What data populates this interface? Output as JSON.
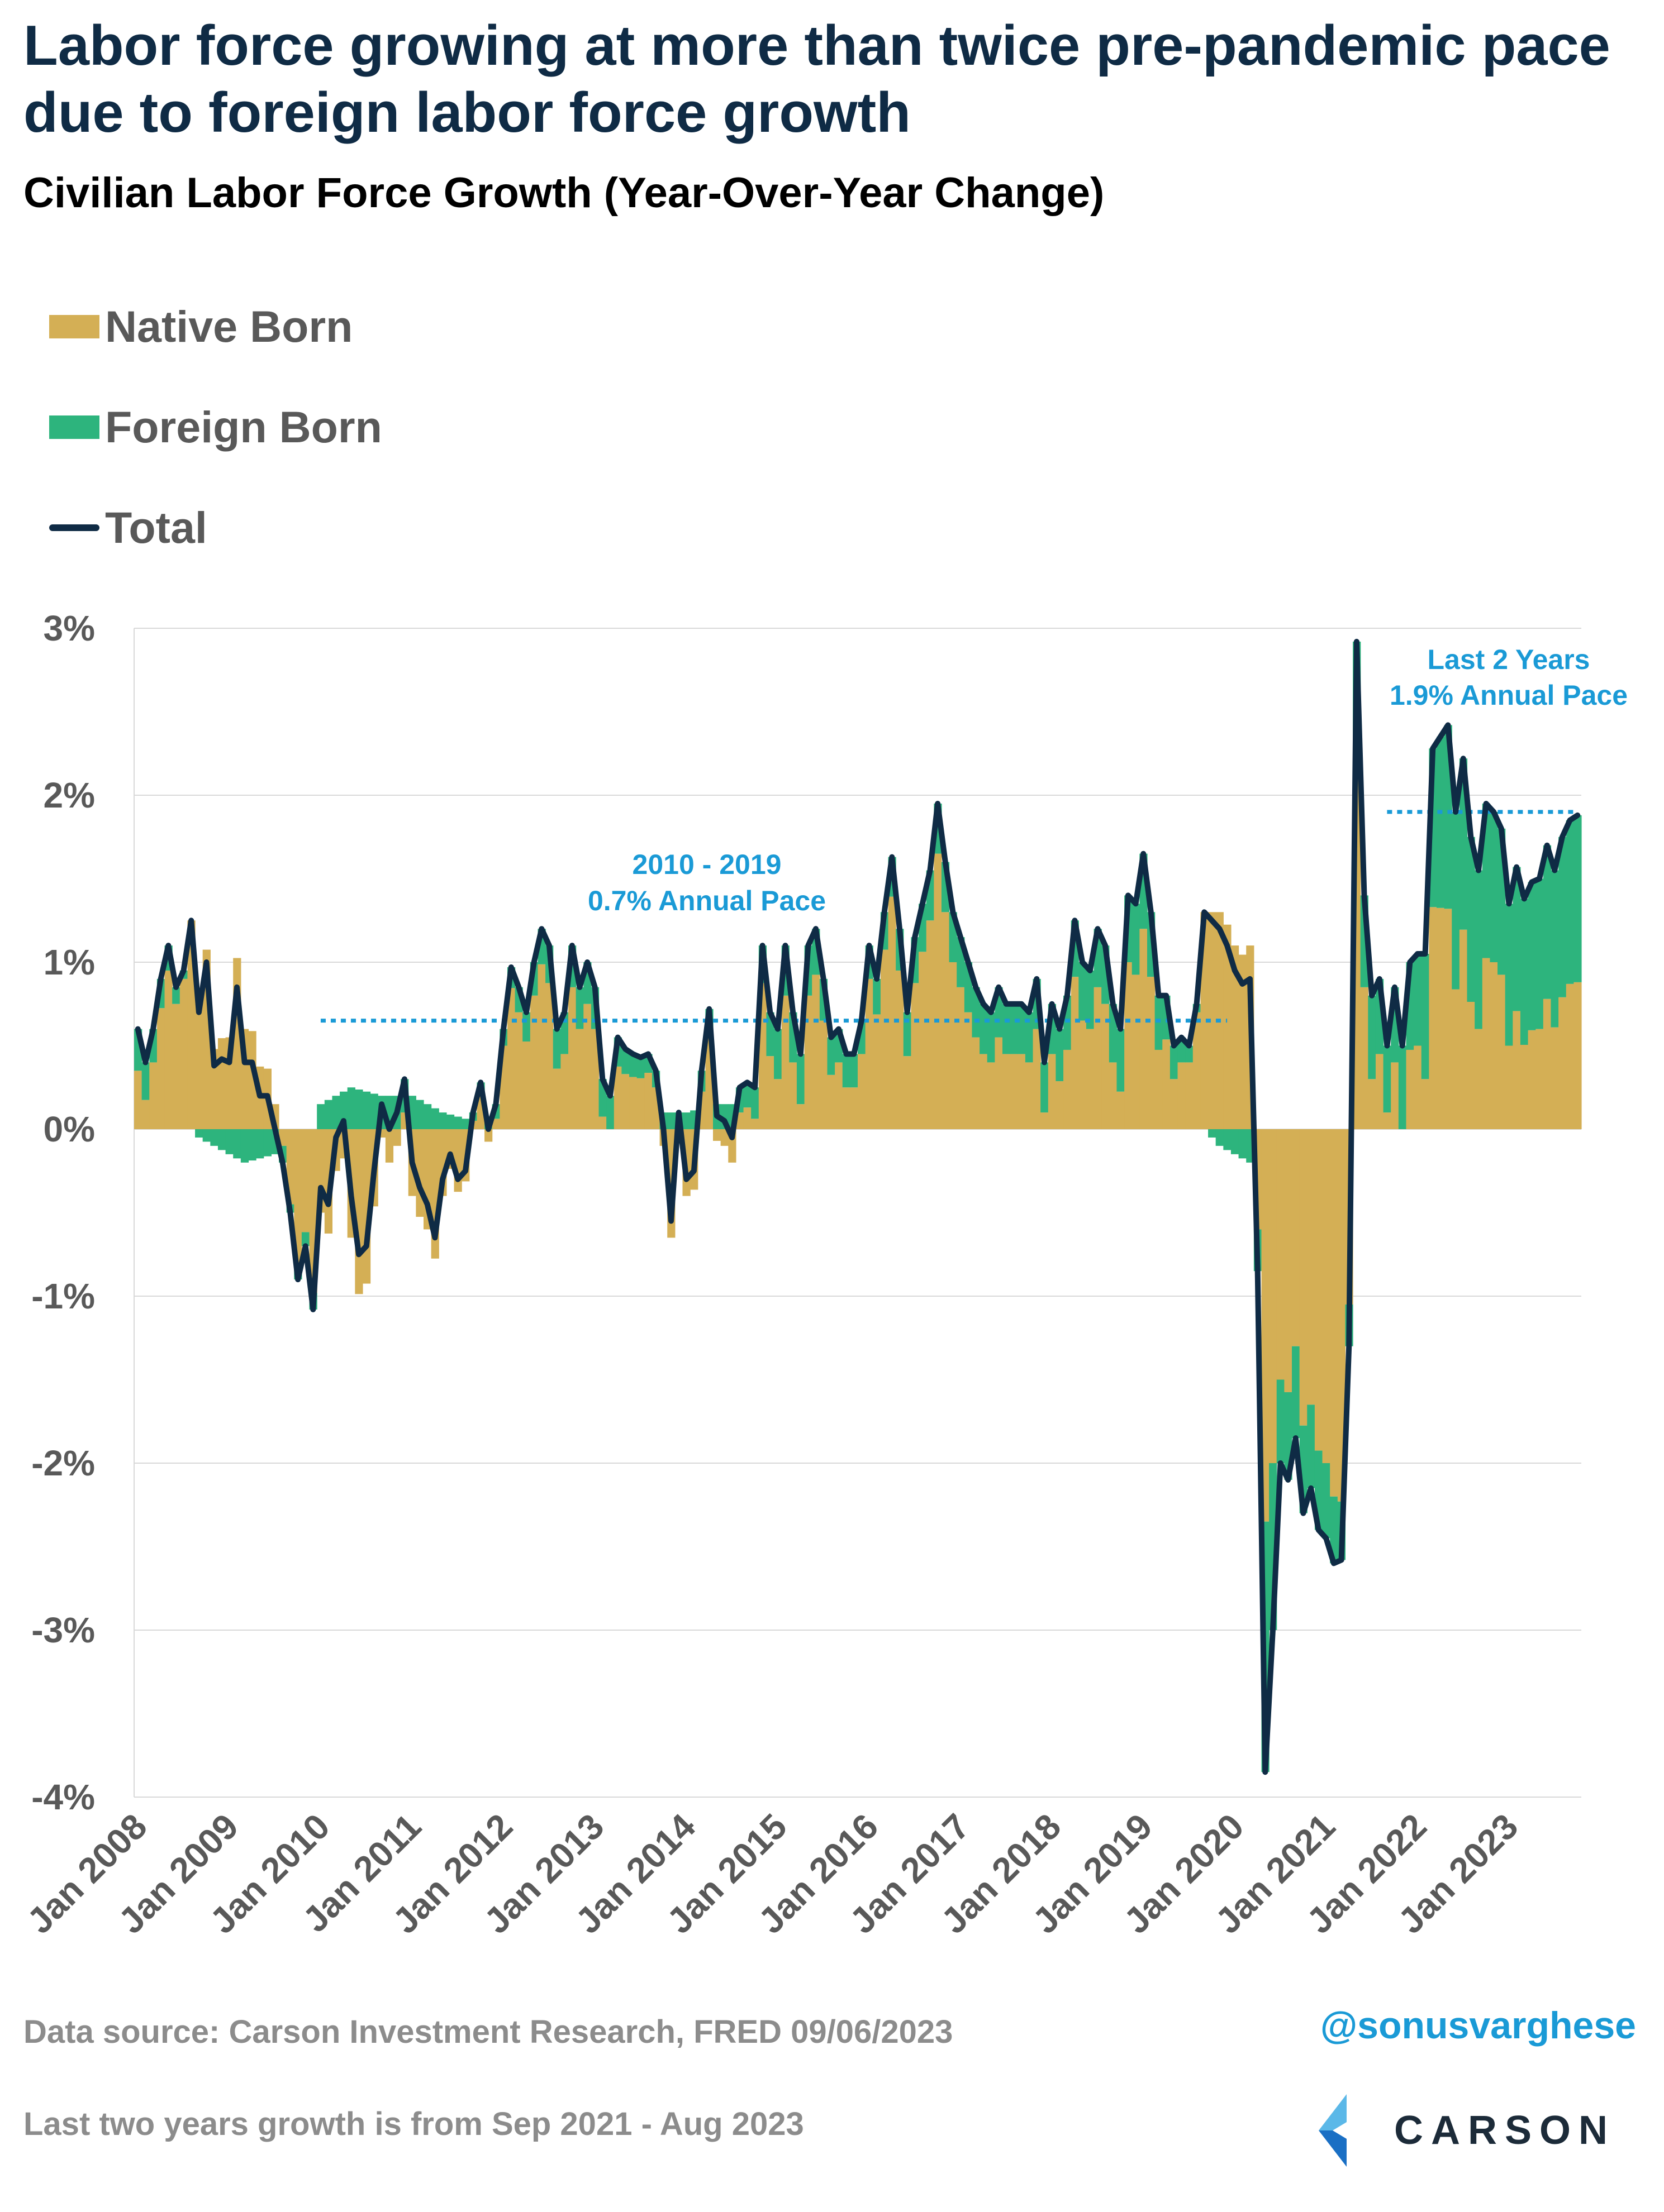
{
  "title": "Labor force growing at more than twice pre-pandemic pace due to foreign labor force growth",
  "subtitle": "Civilian Labor Force Growth (Year-Over-Year Change)",
  "legend": [
    {
      "label": "Native Born",
      "color": "#d4af55",
      "kind": "bar"
    },
    {
      "label": "Foreign Born",
      "color": "#2db47d",
      "kind": "bar"
    },
    {
      "label": "Total",
      "color": "#0f2b45",
      "kind": "line"
    }
  ],
  "annotations": {
    "pre_pandemic": {
      "line1": "2010 - 2019",
      "line2": "0.7% Annual Pace",
      "value": 0.65,
      "start": "Jan 2010",
      "end": "Dec 2019"
    },
    "recent": {
      "line1": "Last 2 Years",
      "line2": "1.9% Annual Pace",
      "value": 1.9,
      "start": "Sep 2021",
      "end": "Aug 2023"
    }
  },
  "footer": {
    "source": "Data source: Carson Investment Research, FRED   09/06/2023",
    "note": "Last two years growth is from Sep 2021 - Aug 2023",
    "handle": "@sonusvarghese",
    "logo_text": "CARSON"
  },
  "chart_data": {
    "type": "bar",
    "stacked": true,
    "title": "Civilian Labor Force Growth (Year-Over-Year Change)",
    "ylim": [
      -4,
      3
    ],
    "yticks": [
      "3%",
      "2%",
      "1%",
      "0%",
      "-1%",
      "-2%",
      "-3%",
      "-4%"
    ],
    "xticks": [
      "Jan 2008",
      "Jan 2009",
      "Jan 2010",
      "Jan 2011",
      "Jan 2012",
      "Jan 2013",
      "Jan 2014",
      "Jan 2015",
      "Jan 2016",
      "Jan 2017",
      "Jan 2018",
      "Jan 2019",
      "Jan 2020",
      "Jan 2021",
      "Jan 2022",
      "Jan 2023"
    ],
    "x_start": "Jan 2008",
    "x_end": "Aug 2023",
    "grid": true,
    "legend_position": "top-left",
    "total_anchors": [
      [
        0,
        0.6
      ],
      [
        1,
        0.4
      ],
      [
        2,
        0.6
      ],
      [
        3,
        0.9
      ],
      [
        4,
        1.1
      ],
      [
        5,
        0.85
      ],
      [
        6,
        0.95
      ],
      [
        7,
        1.25
      ],
      [
        8,
        0.7
      ],
      [
        9,
        1.0
      ],
      [
        10,
        0.38
      ],
      [
        11,
        0.42
      ],
      [
        12,
        0.4
      ],
      [
        13,
        0.85
      ],
      [
        14,
        0.4
      ],
      [
        15,
        0.4
      ],
      [
        16,
        0.2
      ],
      [
        17,
        0.2
      ],
      [
        18,
        0.0
      ],
      [
        19,
        -0.2
      ],
      [
        20,
        -0.5
      ],
      [
        21,
        -0.9
      ],
      [
        22,
        -0.7
      ],
      [
        23,
        -1.08
      ],
      [
        24,
        -0.35
      ],
      [
        25,
        -0.45
      ],
      [
        26,
        -0.05
      ],
      [
        27,
        0.05
      ],
      [
        28,
        -0.4
      ],
      [
        29,
        -0.75
      ],
      [
        30,
        -0.7
      ],
      [
        31,
        -0.25
      ],
      [
        32,
        0.15
      ],
      [
        33,
        0.0
      ],
      [
        34,
        0.1
      ],
      [
        35,
        0.3
      ],
      [
        36,
        -0.2
      ],
      [
        37,
        -0.35
      ],
      [
        38,
        -0.45
      ],
      [
        39,
        -0.65
      ],
      [
        40,
        -0.3
      ],
      [
        41,
        -0.15
      ],
      [
        42,
        -0.3
      ],
      [
        43,
        -0.25
      ],
      [
        44,
        0.1
      ],
      [
        45,
        0.28
      ],
      [
        46,
        0.0
      ],
      [
        47,
        0.15
      ],
      [
        48,
        0.6
      ],
      [
        49,
        0.97
      ],
      [
        50,
        0.85
      ],
      [
        51,
        0.7
      ],
      [
        52,
        1.0
      ],
      [
        53,
        1.2
      ],
      [
        54,
        1.1
      ],
      [
        55,
        0.6
      ],
      [
        56,
        0.7
      ],
      [
        57,
        1.1
      ],
      [
        58,
        0.85
      ],
      [
        59,
        1.0
      ],
      [
        60,
        0.85
      ],
      [
        61,
        0.3
      ],
      [
        62,
        0.2
      ],
      [
        63,
        0.55
      ],
      [
        64,
        0.48
      ],
      [
        65,
        0.45
      ],
      [
        66,
        0.43
      ],
      [
        67,
        0.45
      ],
      [
        68,
        0.35
      ],
      [
        69,
        0.0
      ],
      [
        70,
        -0.55
      ],
      [
        71,
        0.1
      ],
      [
        72,
        -0.3
      ],
      [
        73,
        -0.25
      ],
      [
        74,
        0.35
      ],
      [
        75,
        0.72
      ],
      [
        76,
        0.08
      ],
      [
        77,
        0.05
      ],
      [
        78,
        -0.05
      ],
      [
        79,
        0.25
      ],
      [
        80,
        0.28
      ],
      [
        81,
        0.25
      ],
      [
        82,
        1.1
      ],
      [
        83,
        0.7
      ],
      [
        84,
        0.6
      ],
      [
        85,
        1.1
      ],
      [
        86,
        0.7
      ],
      [
        87,
        0.45
      ],
      [
        88,
        1.1
      ],
      [
        89,
        1.2
      ],
      [
        90,
        0.9
      ],
      [
        91,
        0.55
      ],
      [
        92,
        0.6
      ],
      [
        93,
        0.45
      ],
      [
        94,
        0.45
      ],
      [
        95,
        0.65
      ],
      [
        96,
        1.1
      ],
      [
        97,
        0.9
      ],
      [
        98,
        1.3
      ],
      [
        99,
        1.63
      ],
      [
        100,
        1.2
      ],
      [
        101,
        0.7
      ],
      [
        102,
        1.15
      ],
      [
        103,
        1.35
      ],
      [
        104,
        1.55
      ],
      [
        105,
        1.95
      ],
      [
        106,
        1.6
      ],
      [
        107,
        1.3
      ],
      [
        108,
        1.15
      ],
      [
        109,
        1.0
      ],
      [
        110,
        0.85
      ],
      [
        111,
        0.75
      ],
      [
        112,
        0.7
      ],
      [
        113,
        0.85
      ],
      [
        114,
        0.75
      ],
      [
        115,
        0.75
      ],
      [
        116,
        0.75
      ],
      [
        117,
        0.7
      ],
      [
        118,
        0.9
      ],
      [
        119,
        0.4
      ],
      [
        120,
        0.75
      ],
      [
        121,
        0.6
      ],
      [
        122,
        0.8
      ],
      [
        123,
        1.25
      ],
      [
        124,
        1.0
      ],
      [
        125,
        0.95
      ],
      [
        126,
        1.2
      ],
      [
        127,
        1.1
      ],
      [
        128,
        0.75
      ],
      [
        129,
        0.6
      ],
      [
        130,
        1.4
      ],
      [
        131,
        1.35
      ],
      [
        132,
        1.65
      ],
      [
        133,
        1.3
      ],
      [
        134,
        0.8
      ],
      [
        135,
        0.8
      ],
      [
        136,
        0.5
      ],
      [
        137,
        0.55
      ],
      [
        138,
        0.5
      ],
      [
        139,
        0.75
      ],
      [
        140,
        1.3
      ],
      [
        141,
        1.25
      ],
      [
        142,
        1.2
      ],
      [
        143,
        1.1
      ],
      [
        144,
        0.95
      ],
      [
        145,
        0.87
      ],
      [
        146,
        0.9
      ],
      [
        147,
        -0.85
      ],
      [
        148,
        -3.85
      ],
      [
        149,
        -3.0
      ],
      [
        150,
        -2.0
      ],
      [
        151,
        -2.1
      ],
      [
        152,
        -1.85
      ],
      [
        153,
        -2.3
      ],
      [
        154,
        -2.15
      ],
      [
        155,
        -2.4
      ],
      [
        156,
        -2.45
      ],
      [
        157,
        -2.6
      ],
      [
        158,
        -2.58
      ],
      [
        159,
        -1.3
      ],
      [
        160,
        2.92
      ],
      [
        161,
        1.4
      ],
      [
        162,
        0.8
      ],
      [
        163,
        0.9
      ],
      [
        164,
        0.5
      ],
      [
        165,
        0.85
      ],
      [
        166,
        0.5
      ],
      [
        167,
        1.0
      ],
      [
        168,
        1.05
      ],
      [
        169,
        1.05
      ],
      [
        170,
        2.28
      ],
      [
        171,
        2.35
      ],
      [
        172,
        2.42
      ],
      [
        173,
        1.9
      ],
      [
        174,
        2.22
      ],
      [
        175,
        1.75
      ],
      [
        176,
        1.55
      ],
      [
        177,
        1.95
      ],
      [
        178,
        1.9
      ],
      [
        179,
        1.8
      ],
      [
        180,
        1.35
      ],
      [
        181,
        1.57
      ],
      [
        182,
        1.38
      ],
      [
        183,
        1.48
      ],
      [
        184,
        1.5
      ],
      [
        185,
        1.7
      ],
      [
        186,
        1.55
      ],
      [
        187,
        1.75
      ],
      [
        188,
        1.85
      ],
      [
        189,
        1.88
      ]
    ],
    "foreign_anchors": [
      [
        0,
        0.25
      ],
      [
        4,
        0.15
      ],
      [
        8,
        -0.05
      ],
      [
        10,
        -0.1
      ],
      [
        14,
        -0.2
      ],
      [
        18,
        -0.15
      ],
      [
        20,
        -0.05
      ],
      [
        23,
        -0.1
      ],
      [
        24,
        0.15
      ],
      [
        28,
        0.25
      ],
      [
        32,
        0.2
      ],
      [
        36,
        0.2
      ],
      [
        40,
        0.1
      ],
      [
        44,
        0.05
      ],
      [
        48,
        0.1
      ],
      [
        52,
        0.2
      ],
      [
        56,
        0.25
      ],
      [
        60,
        0.25
      ],
      [
        64,
        0.15
      ],
      [
        68,
        0.1
      ],
      [
        72,
        0.1
      ],
      [
        76,
        0.15
      ],
      [
        80,
        0.15
      ],
      [
        84,
        0.3
      ],
      [
        88,
        0.3
      ],
      [
        92,
        0.2
      ],
      [
        96,
        0.2
      ],
      [
        100,
        0.25
      ],
      [
        104,
        0.3
      ],
      [
        108,
        0.3
      ],
      [
        112,
        0.3
      ],
      [
        116,
        0.3
      ],
      [
        120,
        0.3
      ],
      [
        124,
        0.35
      ],
      [
        128,
        0.35
      ],
      [
        132,
        0.45
      ],
      [
        136,
        0.2
      ],
      [
        140,
        0.0
      ],
      [
        142,
        -0.1
      ],
      [
        146,
        -0.2
      ],
      [
        147,
        -0.25
      ],
      [
        148,
        -1.5
      ],
      [
        150,
        -0.5
      ],
      [
        152,
        -0.55
      ],
      [
        154,
        -0.5
      ],
      [
        156,
        -0.45
      ],
      [
        158,
        -0.35
      ],
      [
        159,
        -0.25
      ],
      [
        160,
        0.6
      ],
      [
        162,
        0.5
      ],
      [
        164,
        0.4
      ],
      [
        166,
        0.5
      ],
      [
        168,
        0.55
      ],
      [
        170,
        0.95
      ],
      [
        172,
        1.1
      ],
      [
        176,
        0.95
      ],
      [
        180,
        0.85
      ],
      [
        184,
        0.9
      ],
      [
        189,
        1.0
      ]
    ]
  }
}
